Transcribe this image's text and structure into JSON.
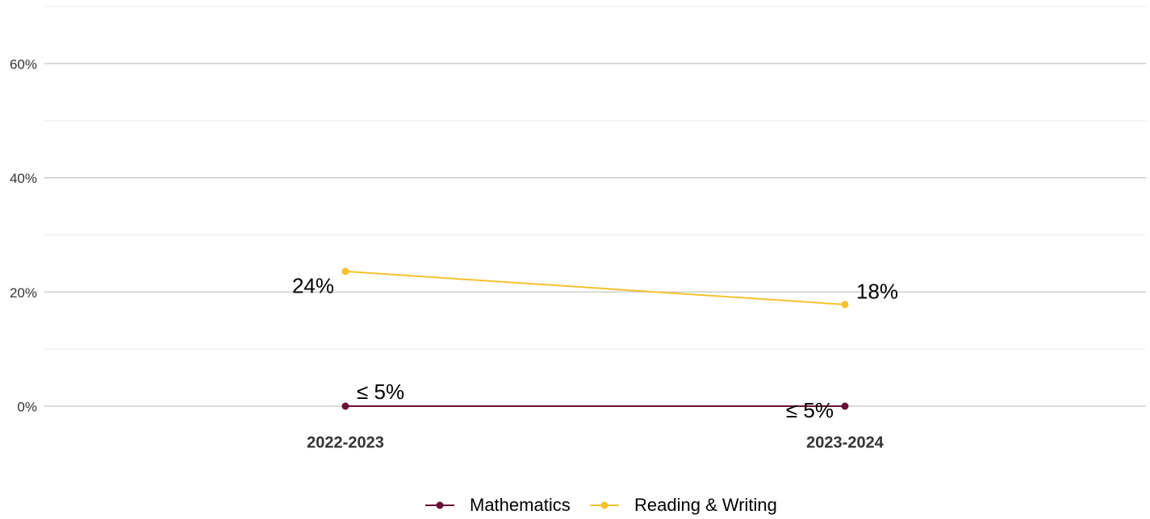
{
  "chart_data": {
    "type": "line",
    "categories": [
      "2022-2023",
      "2023-2024"
    ],
    "series": [
      {
        "name": "Mathematics",
        "color": "#6a0f35",
        "values": [
          0,
          0
        ],
        "value_labels": [
          "≤ 5%",
          "≤ 5%"
        ]
      },
      {
        "name": "Reading & Writing",
        "color": "#f4c22b",
        "values": [
          23.6,
          17.8
        ],
        "value_labels": [
          "24%",
          "18%"
        ]
      }
    ],
    "ylim": [
      0,
      70
    ],
    "yticks": [
      {
        "value": 0,
        "label": "0%"
      },
      {
        "value": 20,
        "label": "20%"
      },
      {
        "value": 40,
        "label": "40%"
      },
      {
        "value": 60,
        "label": "60%"
      }
    ],
    "minor_yticks": [
      10,
      30,
      50,
      70
    ],
    "grid": true,
    "legend": "bottom"
  }
}
